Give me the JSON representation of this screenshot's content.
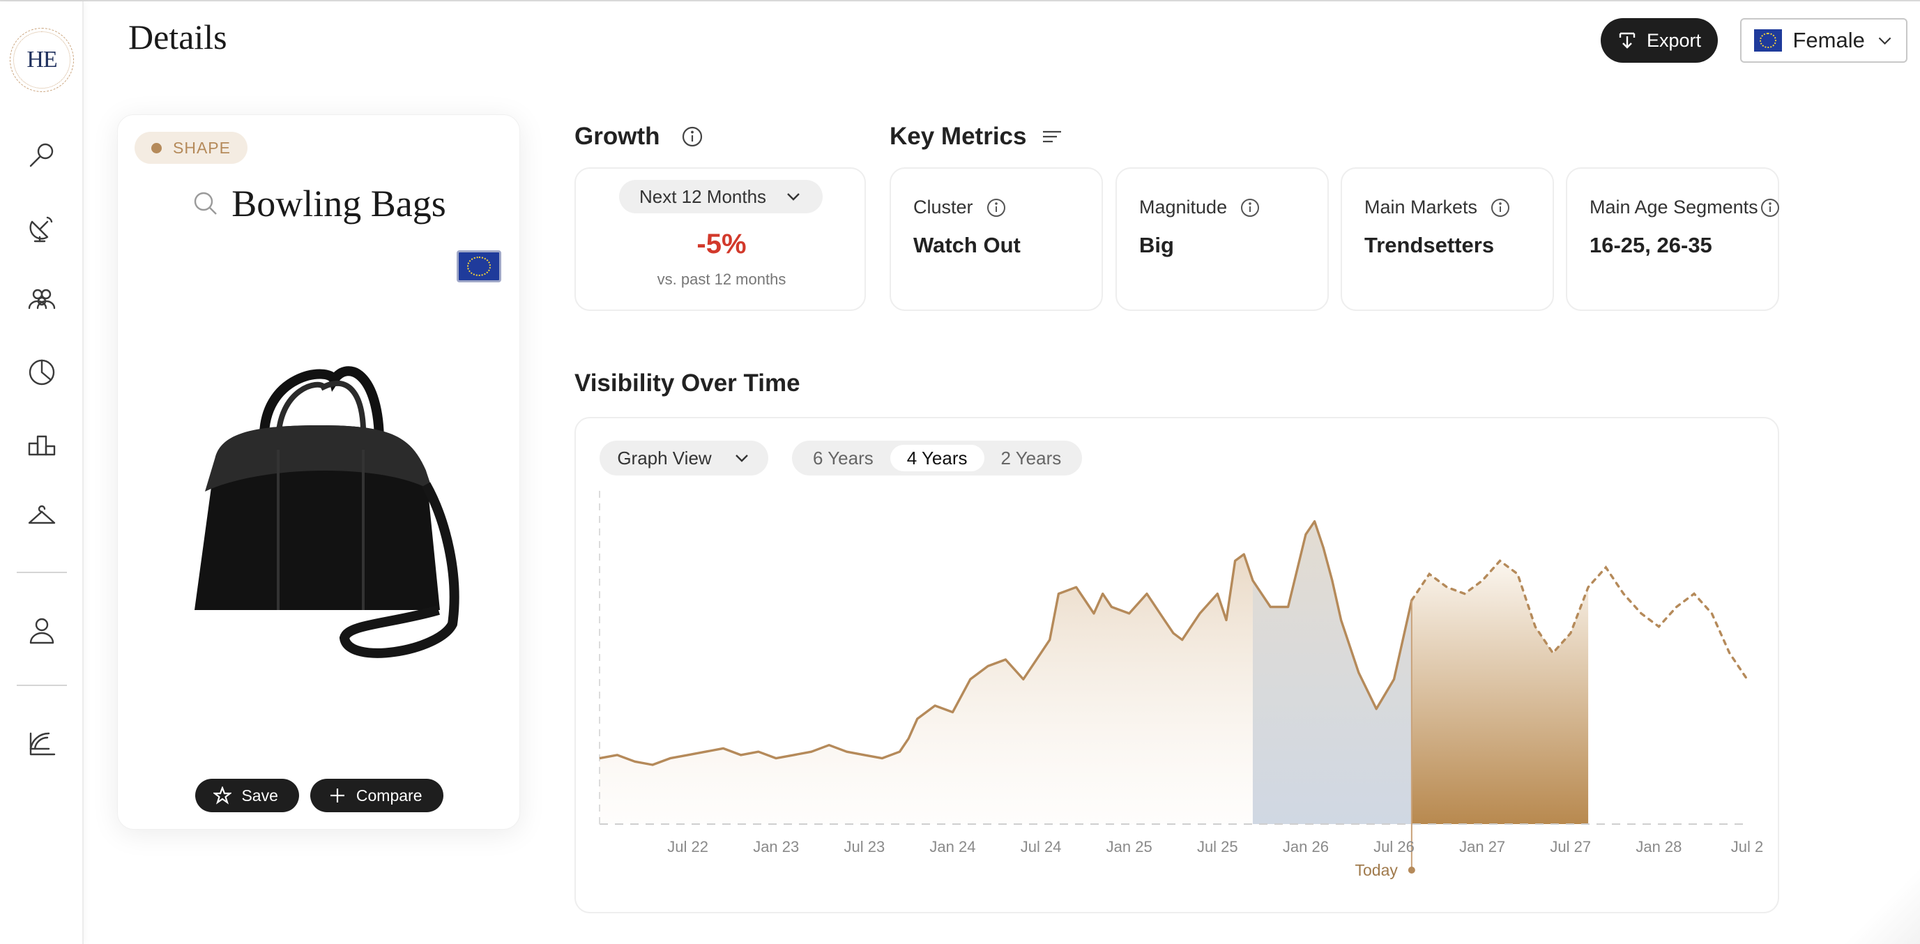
{
  "header": {
    "title": "Details",
    "export_label": "Export",
    "gender_value": "Female"
  },
  "logo": {
    "text": "HE"
  },
  "sidebar": {
    "items": [
      {
        "icon": "search-icon"
      },
      {
        "icon": "satellite-dish-icon"
      },
      {
        "icon": "users-icon"
      },
      {
        "icon": "pie-chart-icon"
      },
      {
        "icon": "podium-icon"
      },
      {
        "icon": "hanger-icon"
      },
      {
        "icon": "user-icon"
      },
      {
        "icon": "chart-book-icon"
      }
    ]
  },
  "product": {
    "badge": "SHAPE",
    "title": "Bowling Bags",
    "save_label": "Save",
    "compare_label": "Compare"
  },
  "growth": {
    "title": "Growth",
    "period": "Next 12 Months",
    "value": "-5%",
    "subtitle": "vs. past 12 months"
  },
  "key_metrics": {
    "title": "Key Metrics",
    "items": [
      {
        "label": "Cluster",
        "value": "Watch Out"
      },
      {
        "label": "Magnitude",
        "value": "Big"
      },
      {
        "label": "Main Markets",
        "value": "Trendsetters"
      },
      {
        "label": "Main Age Segments",
        "value": "16-25, 26-35"
      }
    ]
  },
  "visibility": {
    "title": "Visibility Over Time",
    "view_select": "Graph View",
    "ranges": [
      "6 Years",
      "4 Years",
      "2 Years"
    ],
    "active_range": "4 Years",
    "today_label": "Today"
  },
  "colors": {
    "accent_gold": "#b58a5a",
    "negative_red": "#d2392b",
    "dark": "#1e1e1e",
    "recent_band": "#d5dbe3"
  },
  "chart_data": {
    "type": "area",
    "x_tick_labels": [
      "Jul 22",
      "Jan 23",
      "Jul 23",
      "Jan 24",
      "Jul 24",
      "Jan 25",
      "Jul 25",
      "Jan 26",
      "Jul 26",
      "Jan 27",
      "Jul 27",
      "Jan 28",
      "Jul 2"
    ],
    "x_range": [
      2022.0,
      2028.5
    ],
    "ylim": [
      0,
      100
    ],
    "grid": false,
    "today": 2026.6,
    "actual_series": {
      "x": [
        2022.0,
        2022.1,
        2022.2,
        2022.3,
        2022.4,
        2022.5,
        2022.6,
        2022.7,
        2022.8,
        2022.9,
        2023.0,
        2023.1,
        2023.2,
        2023.3,
        2023.4,
        2023.5,
        2023.6,
        2023.7,
        2023.75,
        2023.8,
        2023.9,
        2024.0,
        2024.1,
        2024.15,
        2024.2,
        2024.3,
        2024.4,
        2024.5,
        2024.55,
        2024.6,
        2024.7,
        2024.75,
        2024.8,
        2024.85,
        2024.9,
        2025.0,
        2025.1,
        2025.2,
        2025.25,
        2025.3,
        2025.4,
        2025.5,
        2025.55,
        2025.6,
        2025.65,
        2025.7,
        2025.75,
        2025.8,
        2025.9,
        2026.0,
        2026.05,
        2026.1,
        2026.15,
        2026.2,
        2026.3,
        2026.4,
        2026.5,
        2026.6
      ],
      "y": [
        20,
        21,
        19,
        18,
        20,
        21,
        22,
        23,
        21,
        22,
        20,
        21,
        22,
        24,
        22,
        21,
        20,
        22,
        26,
        32,
        36,
        34,
        44,
        46,
        48,
        50,
        44,
        52,
        56,
        70,
        72,
        68,
        64,
        70,
        66,
        64,
        70,
        62,
        58,
        56,
        64,
        70,
        62,
        80,
        82,
        74,
        70,
        66,
        66,
        88,
        92,
        84,
        74,
        62,
        46,
        35,
        44,
        68
      ],
      "band_start": 2025.7
    },
    "forecast_series": {
      "x": [
        2026.6,
        2026.7,
        2026.8,
        2026.9,
        2027.0,
        2027.1,
        2027.2,
        2027.3,
        2027.4,
        2027.5,
        2027.6,
        2027.7,
        2027.8,
        2027.9,
        2028.0,
        2028.1,
        2028.2,
        2028.3,
        2028.4,
        2028.5
      ],
      "y": [
        68,
        76,
        72,
        70,
        74,
        80,
        76,
        60,
        52,
        58,
        72,
        78,
        70,
        64,
        60,
        66,
        70,
        64,
        52,
        44
      ],
      "band_end": 2027.6
    }
  }
}
